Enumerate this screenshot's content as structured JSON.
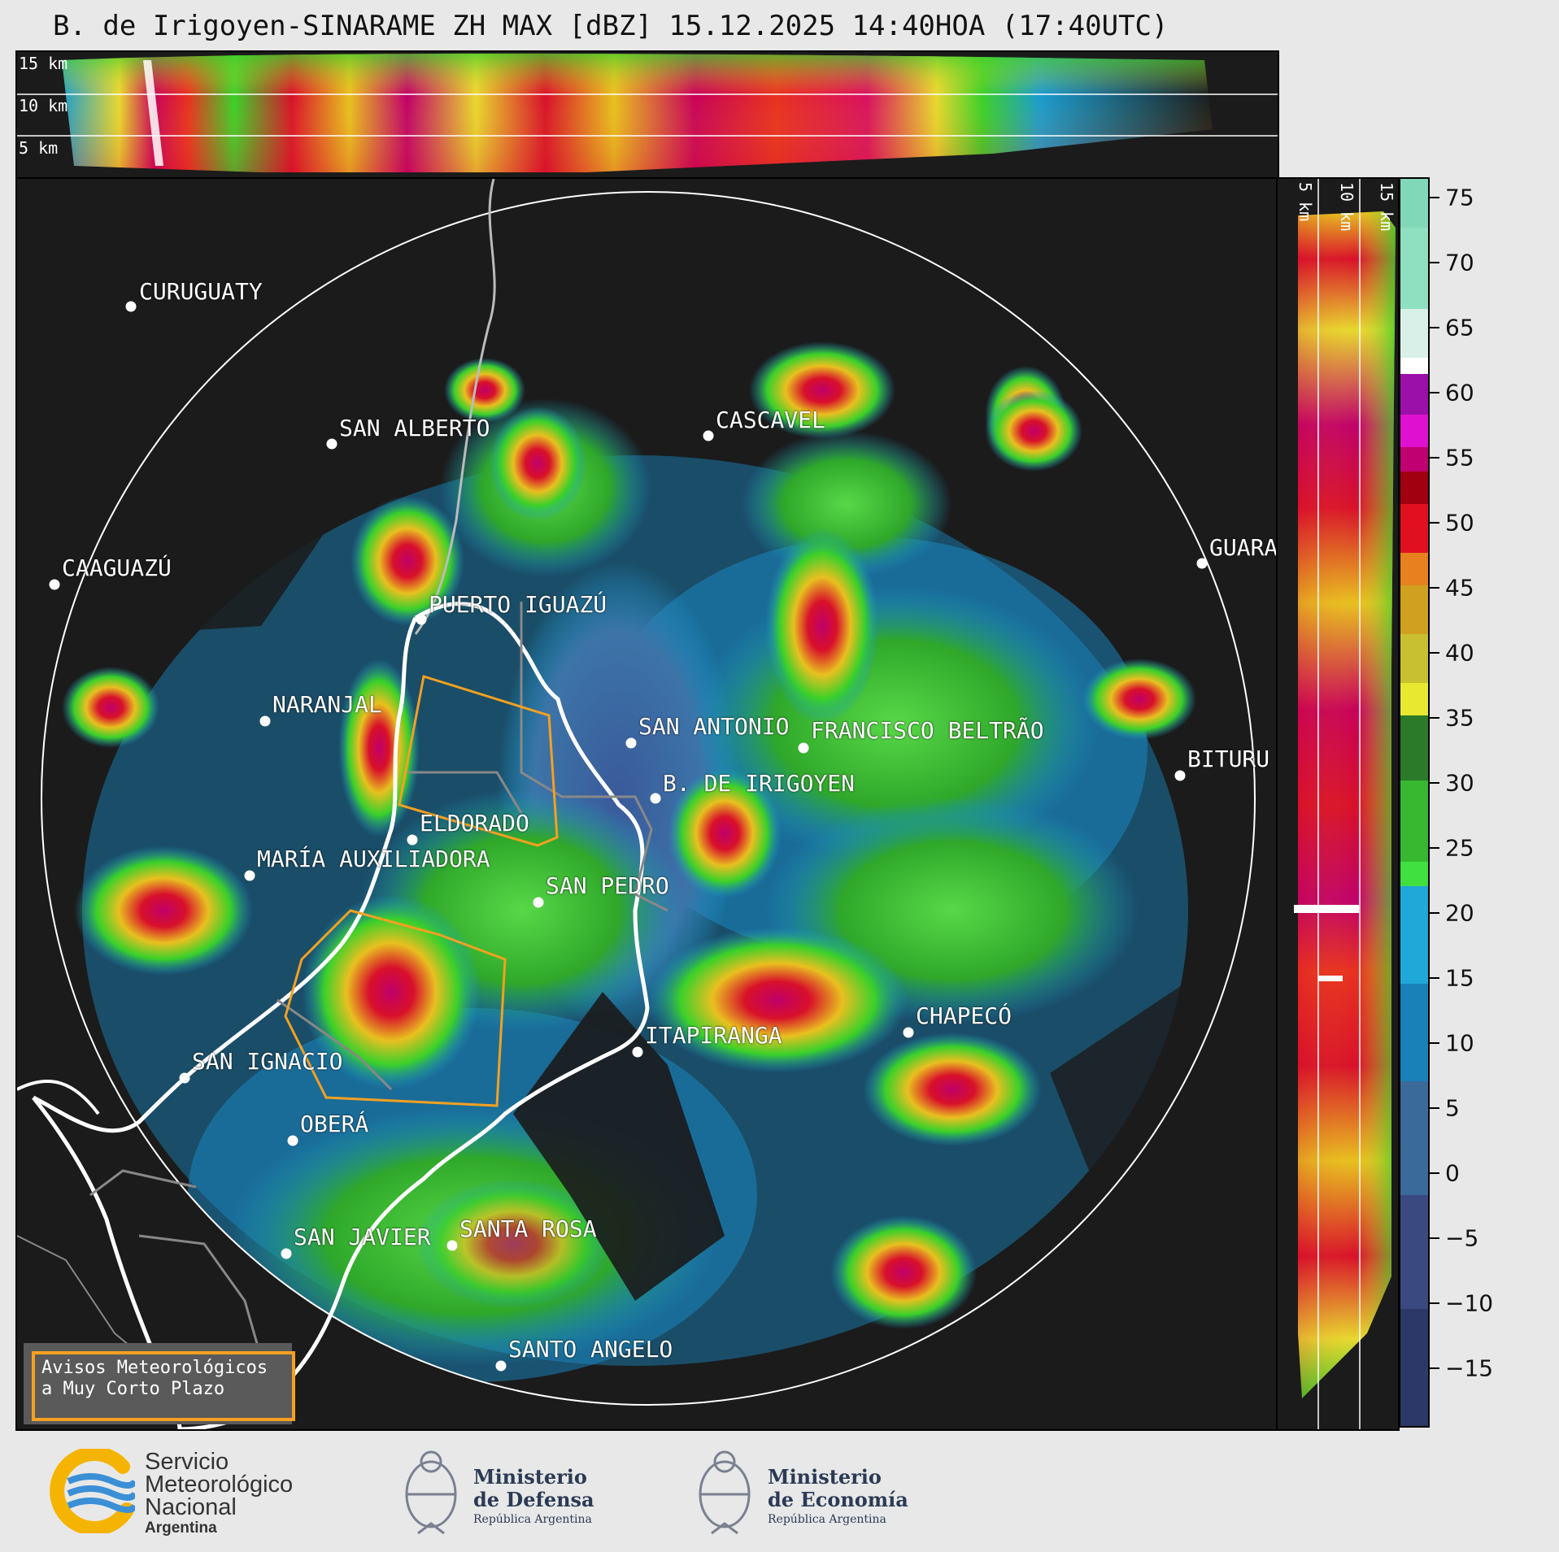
{
  "title": "B. de Irigoyen-SINARAME ZH MAX [dBZ] 15.12.2025 14:40HOA (17:40UTC)",
  "top_section": {
    "km_labels": [
      "15 km",
      "10 km",
      "5 km"
    ]
  },
  "right_section": {
    "km_labels": [
      "5 km",
      "10 km",
      "15 km"
    ]
  },
  "colorbar": {
    "unit": "dBZ",
    "ticks": [
      "75",
      "70",
      "65",
      "60",
      "55",
      "50",
      "45",
      "40",
      "35",
      "30",
      "25",
      "20",
      "15",
      "10",
      "5",
      "0",
      "−5",
      "−10",
      "−15"
    ]
  },
  "cities": [
    {
      "name": "CURUGUATY"
    },
    {
      "name": "SAN ALBERTO"
    },
    {
      "name": "CAAGUAZÚ"
    },
    {
      "name": "PUERTO IGUAZÚ"
    },
    {
      "name": "CASCAVEL"
    },
    {
      "name": "GUARA"
    },
    {
      "name": "NARANJAL"
    },
    {
      "name": "SAN ANTONIO"
    },
    {
      "name": "FRANCISCO BELTRÃO"
    },
    {
      "name": "BITURU"
    },
    {
      "name": "B. DE IRIGOYEN"
    },
    {
      "name": "ELDORADO"
    },
    {
      "name": "MARÍA AUXILIADORA"
    },
    {
      "name": "SAN PEDRO"
    },
    {
      "name": "CHAPECÓ"
    },
    {
      "name": "ITAPIRANGA"
    },
    {
      "name": "SAN IGNACIO"
    },
    {
      "name": "OBERÁ"
    },
    {
      "name": "SAN JAVIER"
    },
    {
      "name": "SANTA ROSA"
    },
    {
      "name": "SANTO ANGELO"
    }
  ],
  "legend": {
    "line1": "Avisos Meteorológicos",
    "line2": "a Muy Corto Plazo"
  },
  "footer": {
    "smn": [
      "Servicio",
      "Meteorológico",
      "Nacional",
      "Argentina"
    ],
    "defensa": [
      "Ministerio",
      "de Defensa",
      "República Argentina"
    ],
    "economia": [
      "Ministerio",
      "de Economía",
      "República Argentina"
    ]
  },
  "colors": {
    "map_bg": "#1b1b1b",
    "warning_outline": "#f4a020",
    "smn_blue": "#3a8fd6",
    "smn_yellow": "#f5b400",
    "ministry_text": "#2b3a55"
  }
}
